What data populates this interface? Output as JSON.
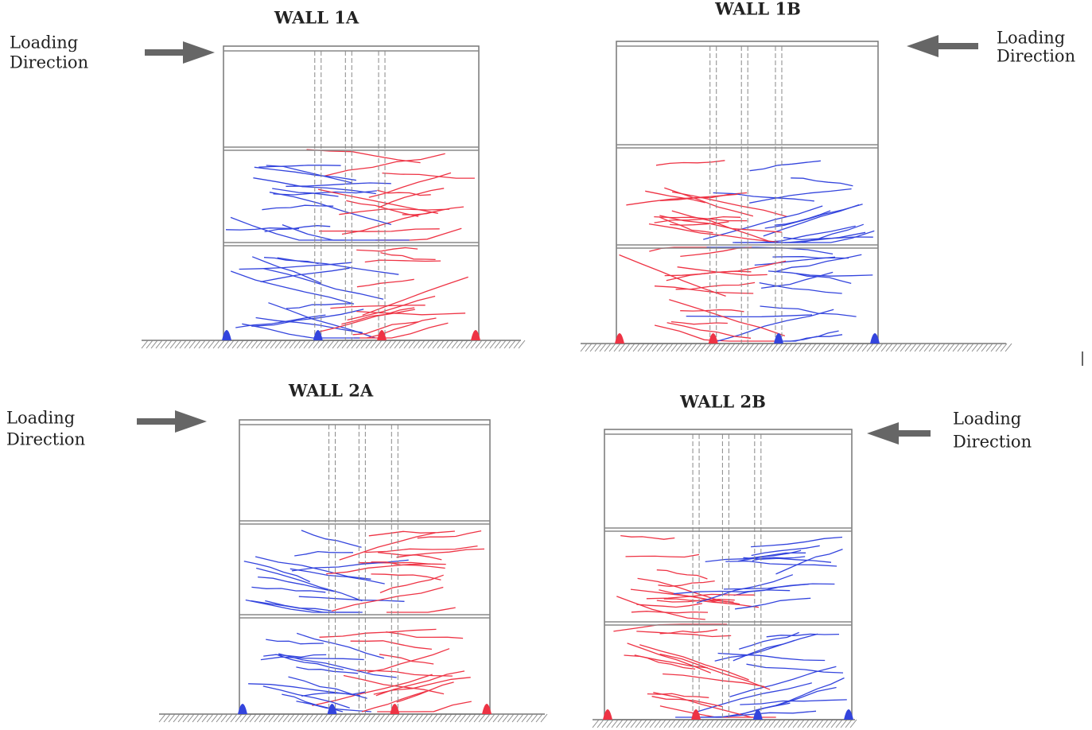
{
  "walls": [
    {
      "title": "WALL 1A",
      "loading": [
        "Loading",
        "Direction"
      ]
    },
    {
      "title": "WALL 1B",
      "loading": [
        "Loading",
        "Direction"
      ]
    },
    {
      "title": "WALL 2A",
      "loading": [
        "Loading",
        "Direction"
      ]
    },
    {
      "title": "WALL 2B",
      "loading": [
        "Loading",
        "Direction"
      ]
    }
  ]
}
